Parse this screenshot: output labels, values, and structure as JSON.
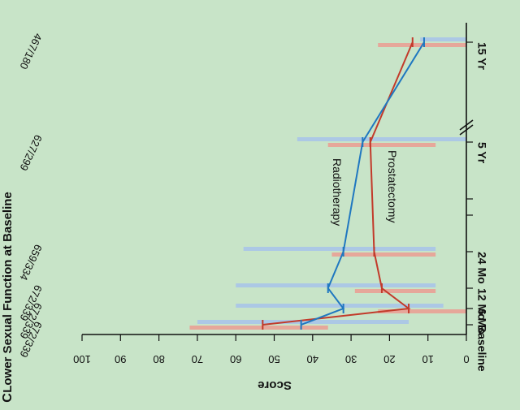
{
  "panel_letter": "C",
  "chart_data": {
    "type": "line",
    "title": "Lower Sexual Function at Baseline",
    "ylabel": "Score",
    "score_ticks": [
      "0",
      "10",
      "20",
      "30",
      "40",
      "50",
      "60",
      "70",
      "80",
      "90",
      "100"
    ],
    "score_range": [
      0,
      100
    ],
    "time_labels": [
      "Baseline",
      "6 Mo",
      "12 Mo",
      "24 Mo",
      "5 Yr",
      "15 Yr"
    ],
    "counts": [
      "672/339",
      "672/339",
      "672/339",
      "659/334",
      "627/299",
      "467/180"
    ],
    "series": [
      {
        "name": "Prostatectomy",
        "color": "#c23a2a",
        "band_color": "#e9a095",
        "values": [
          53,
          15,
          22,
          24,
          25,
          14
        ],
        "iqr": [
          [
            36,
            72
          ],
          [
            0,
            23
          ],
          [
            8,
            29
          ],
          [
            8,
            35
          ],
          [
            8,
            36
          ],
          [
            0,
            23
          ]
        ]
      },
      {
        "name": "Radiotherapy",
        "color": "#1f77c0",
        "band_color": "#a9c4e8",
        "values": [
          43,
          32,
          36,
          32,
          27,
          11
        ],
        "iqr": [
          [
            15,
            70
          ],
          [
            6,
            60
          ],
          [
            8,
            60
          ],
          [
            8,
            58
          ],
          [
            0,
            44
          ],
          [
            0,
            12
          ]
        ]
      }
    ],
    "grid": false,
    "legend": "inline labels"
  }
}
